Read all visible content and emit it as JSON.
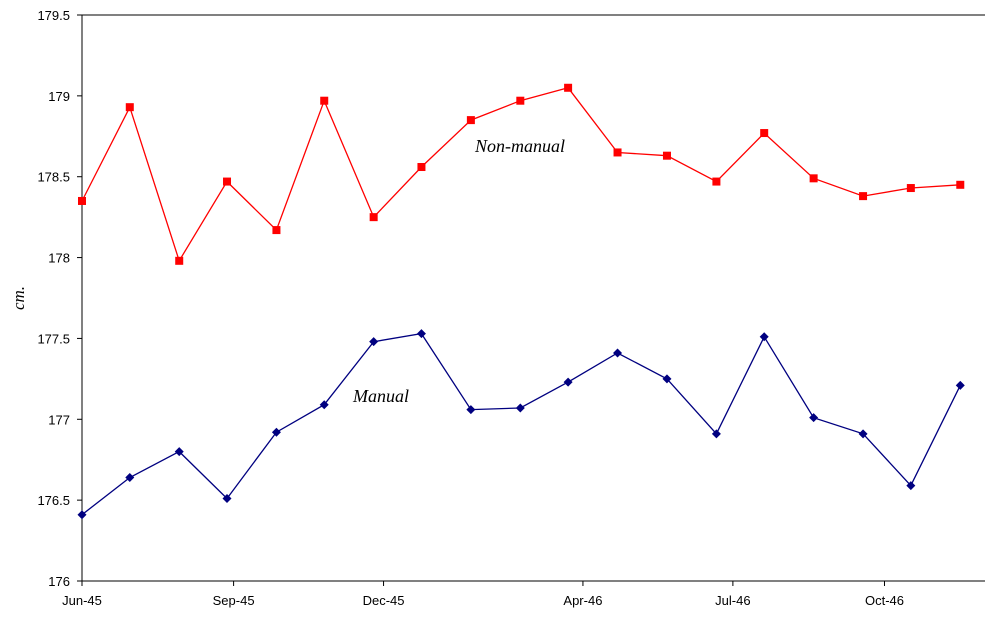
{
  "chart_data": {
    "type": "line",
    "title": "",
    "xlabel": "",
    "ylabel": "cm.",
    "ylim": [
      176,
      179.5
    ],
    "yticks": [
      176,
      176.5,
      177,
      177.5,
      178,
      178.5,
      179,
      179.5
    ],
    "ytick_labels": [
      "176",
      "176.5",
      "177",
      "177.5",
      "178",
      "178.5",
      "179",
      "179.5"
    ],
    "xlim": [
      "1945-06-01",
      "1946-12-01"
    ],
    "xticks": [
      "1945-06-01",
      "1945-09-01",
      "1945-12-01",
      "1946-04-01",
      "1946-07-01",
      "1946-10-01"
    ],
    "xtick_labels": [
      "Jun-45",
      "Sep-45",
      "Dec-45",
      "Apr-46",
      "Jul-46",
      "Oct-46"
    ],
    "grid": false,
    "legend": "none",
    "series": [
      {
        "name": "Non-manual",
        "color": "#ff0000",
        "marker": "square",
        "x": [
          "1945-06-01",
          "1945-06-30",
          "1945-07-30",
          "1945-08-28",
          "1945-09-27",
          "1945-10-26",
          "1945-11-25",
          "1945-12-24",
          "1946-01-23",
          "1946-02-22",
          "1946-03-23",
          "1946-04-22",
          "1946-05-22",
          "1946-06-21",
          "1946-07-20",
          "1946-08-19",
          "1946-09-18",
          "1946-10-17",
          "1946-11-16"
        ],
        "values": [
          178.35,
          178.93,
          177.98,
          178.47,
          178.17,
          178.97,
          178.25,
          178.56,
          178.85,
          178.97,
          179.05,
          178.65,
          178.63,
          178.47,
          178.77,
          178.49,
          178.38,
          178.43,
          178.45
        ]
      },
      {
        "name": "Manual",
        "color": "#000080",
        "marker": "diamond",
        "x": [
          "1945-06-01",
          "1945-06-30",
          "1945-07-30",
          "1945-08-28",
          "1945-09-27",
          "1945-10-26",
          "1945-11-25",
          "1945-12-24",
          "1946-01-23",
          "1946-02-22",
          "1946-03-23",
          "1946-04-22",
          "1946-05-22",
          "1946-06-21",
          "1946-07-20",
          "1946-08-19",
          "1946-09-18",
          "1946-10-17",
          "1946-11-16"
        ],
        "values": [
          176.41,
          176.64,
          176.8,
          176.51,
          176.92,
          177.09,
          177.48,
          177.53,
          177.06,
          177.07,
          177.23,
          177.41,
          177.25,
          176.91,
          177.51,
          177.01,
          176.91,
          176.59,
          177.21
        ]
      }
    ],
    "annotations": [
      {
        "text": "Non-manual",
        "series": "Non-manual"
      },
      {
        "text": "Manual",
        "series": "Manual"
      }
    ]
  }
}
